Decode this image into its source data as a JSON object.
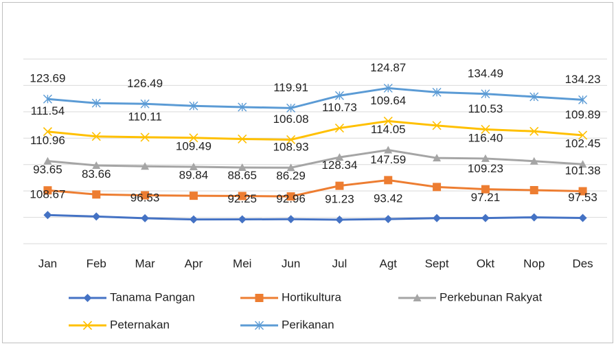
{
  "chart_data": {
    "type": "stacked-line",
    "categories": [
      "Jan",
      "Feb",
      "Mar",
      "Apr",
      "Mei",
      "Jun",
      "Jul",
      "Agt",
      "Sept",
      "Okt",
      "Nop",
      "Des"
    ],
    "ylim": [
      0,
      700
    ],
    "yticks": [
      0,
      100,
      200,
      300,
      400,
      500,
      600,
      700
    ],
    "grid": true,
    "series": [
      {
        "name": "Tanama Pangan",
        "color": "#4472c4",
        "marker": "diamond",
        "values": [
          108.67,
          103,
          96.53,
          92,
          92.25,
          92.96,
          91.23,
          93.42,
          97,
          97.21,
          100,
          97.53
        ],
        "value_labels": [
          "108.67",
          null,
          "96.53",
          null,
          "92.25",
          "92.96",
          "91.23",
          "93.42",
          null,
          "97.21",
          null,
          "97.53"
        ]
      },
      {
        "name": "Hortikultura",
        "color": "#ed7d31",
        "marker": "square",
        "values": [
          93.65,
          83.66,
          87,
          89.84,
          88.65,
          86.29,
          128.34,
          147.59,
          118,
          109.23,
          103,
          101.38
        ],
        "value_labels": [
          "93.65",
          "83.66",
          null,
          "89.84",
          "88.65",
          "86.29",
          "128.34",
          "147.59",
          null,
          "109.23",
          null,
          "101.38"
        ]
      },
      {
        "name": "Perkebunan Rakyat",
        "color": "#a5a5a5",
        "marker": "triangle",
        "values": [
          110.96,
          110,
          110,
          109.49,
          108,
          108.93,
          108,
          114.05,
          110,
          116.4,
          110,
          102.45
        ],
        "value_labels": [
          "110.96",
          null,
          null,
          "109.49",
          null,
          "108.93",
          null,
          "114.05",
          null,
          "116.40",
          null,
          "102.45"
        ]
      },
      {
        "name": "Peternakan",
        "color": "#ffc000",
        "marker": "x",
        "values": [
          111.54,
          110,
          110.11,
          110,
          108,
          106.08,
          110.73,
          109.64,
          123,
          110.53,
          113,
          109.89
        ],
        "value_labels": [
          "111.54",
          null,
          "110.11",
          null,
          null,
          "106.08",
          "110.73",
          "109.64",
          null,
          "110.53",
          null,
          "109.89"
        ]
      },
      {
        "name": "Perikanan",
        "color": "#5b9bd5",
        "marker": "star",
        "values": [
          123.69,
          126,
          126.49,
          121,
          121,
          119.91,
          123,
          124.87,
          126,
          134.49,
          131,
          134.23
        ],
        "value_labels": [
          "123.69",
          null,
          "126.49",
          null,
          null,
          "119.91",
          null,
          "124.87",
          null,
          "134.49",
          null,
          "134.23"
        ]
      }
    ]
  }
}
